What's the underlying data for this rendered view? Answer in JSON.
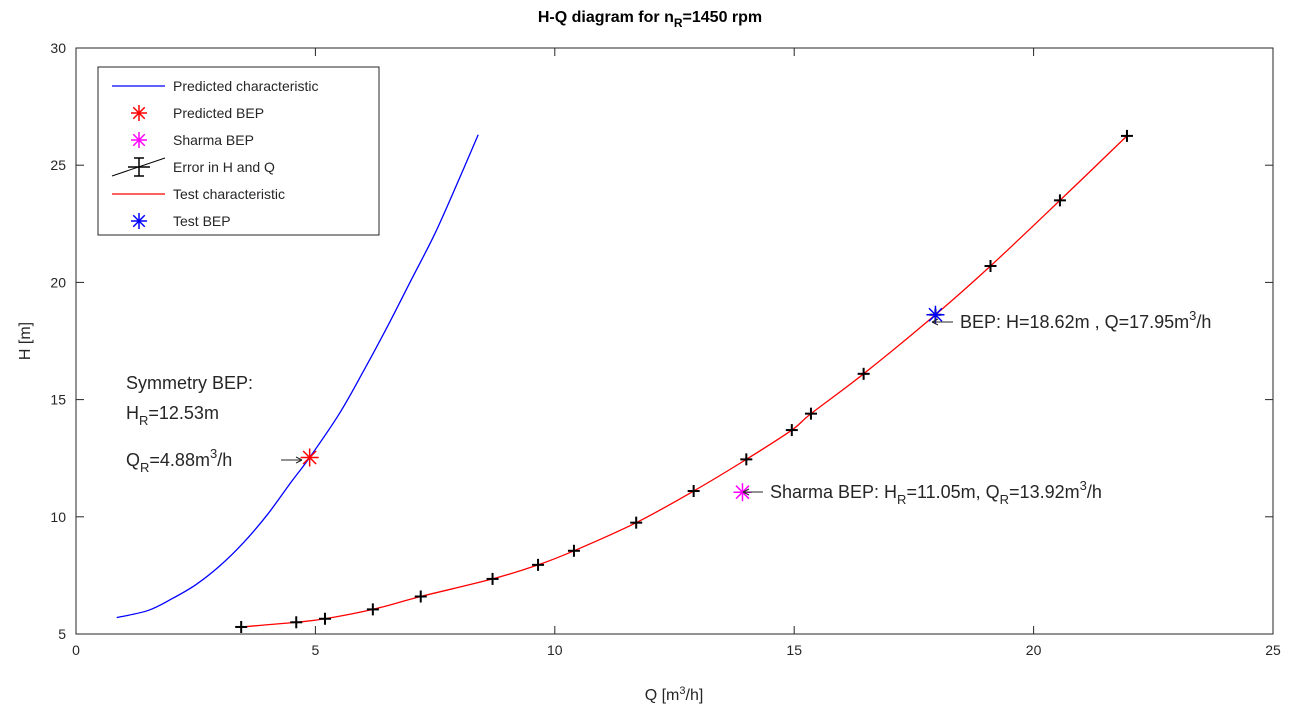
{
  "chart_data": {
    "type": "line",
    "title": "H-Q diagram for n",
    "title_sub": "R",
    "title_rest": "=1450 rpm",
    "xlabel": "Q [m",
    "xlabel_sup": "3",
    "xlabel_rest": "/h]",
    "ylabel": "H [m]",
    "xlim": [
      0,
      25
    ],
    "ylim": [
      5,
      30
    ],
    "xticks": [
      "0",
      "5",
      "10",
      "15",
      "20",
      "25"
    ],
    "yticks": [
      "5",
      "10",
      "15",
      "20",
      "25",
      "30"
    ],
    "grid": false,
    "legend_position": "top-left",
    "legend": [
      {
        "label": "Predicted characteristic",
        "kind": "line",
        "color": "#0000ff"
      },
      {
        "label": "Predicted BEP",
        "kind": "star",
        "color": "#ff0000"
      },
      {
        "label": "Sharma BEP",
        "kind": "star",
        "color": "#ff00ff"
      },
      {
        "label": "Error in H and Q",
        "kind": "errorbar",
        "color": "#000000"
      },
      {
        "label": "Test characteristic",
        "kind": "line",
        "color": "#ff0000"
      },
      {
        "label": "Test BEP",
        "kind": "star",
        "color": "#0000ff"
      }
    ],
    "series": [
      {
        "name": "Predicted characteristic",
        "color": "#0000ff",
        "x": [
          0.85,
          1.5,
          2.0,
          2.5,
          3.0,
          3.5,
          4.0,
          4.5,
          4.88,
          5.5,
          6.0,
          6.5,
          7.0,
          7.5,
          8.0,
          8.4
        ],
        "y": [
          5.7,
          6.0,
          6.5,
          7.1,
          7.9,
          8.9,
          10.1,
          11.5,
          12.53,
          14.4,
          16.2,
          18.1,
          20.1,
          22.1,
          24.4,
          26.3
        ]
      },
      {
        "name": "Test characteristic",
        "color": "#ff0000",
        "x": [
          3.45,
          4.6,
          5.2,
          6.2,
          7.2,
          8.7,
          9.65,
          10.4,
          11.7,
          12.9,
          14.0,
          14.95,
          15.35,
          16.45,
          17.95,
          19.1,
          20.55,
          21.95
        ],
        "y": [
          5.3,
          5.5,
          5.65,
          6.05,
          6.6,
          7.35,
          7.95,
          8.55,
          9.75,
          11.1,
          12.45,
          13.7,
          14.4,
          16.1,
          18.62,
          20.7,
          23.5,
          26.25
        ]
      }
    ],
    "error_points": {
      "name": "Error in H and Q",
      "x": [
        3.45,
        4.6,
        5.2,
        6.2,
        7.2,
        8.7,
        9.65,
        10.4,
        11.7,
        12.9,
        14.0,
        14.95,
        15.35,
        16.45,
        17.95,
        19.1,
        20.55,
        21.95
      ],
      "y": [
        5.3,
        5.5,
        5.65,
        6.05,
        6.6,
        7.35,
        7.95,
        8.55,
        9.75,
        11.1,
        12.45,
        13.7,
        14.4,
        16.1,
        18.62,
        20.7,
        23.5,
        26.25
      ]
    },
    "markers": [
      {
        "name": "Predicted BEP",
        "x": 4.88,
        "y": 12.53,
        "color": "#ff0000"
      },
      {
        "name": "Sharma BEP",
        "x": 13.92,
        "y": 11.05,
        "color": "#ff00ff"
      },
      {
        "name": "Test BEP",
        "x": 17.95,
        "y": 18.62,
        "color": "#0000ff"
      }
    ],
    "annotations": {
      "symmetry_line1": "Symmetry BEP:",
      "symmetry_h_main": "H",
      "symmetry_h_sub": "R",
      "symmetry_h_rest": "=12.53m",
      "symmetry_q_main": "Q",
      "symmetry_q_sub": "R",
      "symmetry_q_mid": "=4.88m",
      "symmetry_q_sup": "3",
      "symmetry_q_rest": "/h",
      "test_bep_main": "BEP: H=18.62m , Q=17.95m",
      "test_bep_sup": "3",
      "test_bep_rest": "/h",
      "sharma_a": "Sharma BEP: H",
      "sharma_sub1": "R",
      "sharma_b": "=11.05m, Q",
      "sharma_sub2": "R",
      "sharma_c": "=13.92m",
      "sharma_sup": "3",
      "sharma_d": "/h"
    }
  }
}
